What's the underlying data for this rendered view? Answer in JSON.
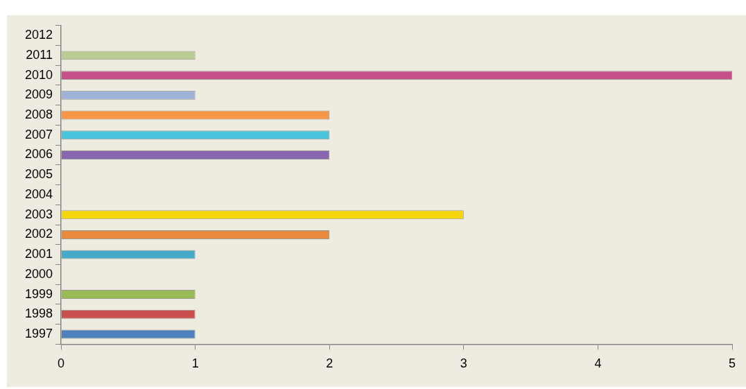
{
  "chart_data": {
    "type": "bar",
    "orientation": "horizontal",
    "categories": [
      "2012",
      "2011",
      "2010",
      "2009",
      "2008",
      "2007",
      "2006",
      "2005",
      "2004",
      "2003",
      "2002",
      "2001",
      "2000",
      "1999",
      "1998",
      "1997"
    ],
    "values": [
      null,
      1,
      5,
      1,
      2,
      2,
      2,
      null,
      null,
      3,
      2,
      1,
      null,
      1,
      1,
      1
    ],
    "colors": [
      "#000000",
      "#b9cc92",
      "#c8508a",
      "#9db2d6",
      "#f79646",
      "#4cc4de",
      "#8866b0",
      "#000000",
      "#000000",
      "#f5d50c",
      "#e88a3e",
      "#47a9c8",
      "#000000",
      "#98bb55",
      "#c8504e",
      "#4f81bd"
    ],
    "xlim": [
      0,
      5
    ],
    "xticks": [
      0,
      1,
      2,
      3,
      4,
      5
    ],
    "grid": false,
    "legend": false
  }
}
